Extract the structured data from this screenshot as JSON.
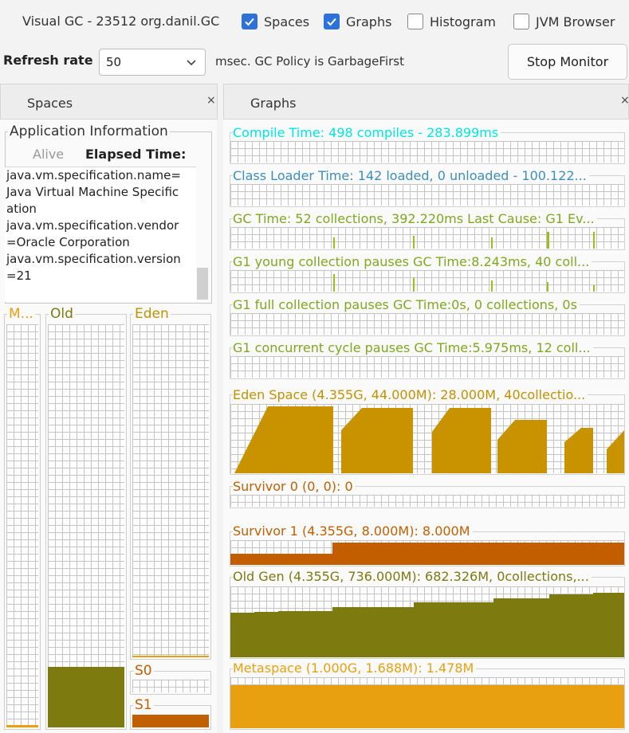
{
  "window": {
    "title": "Visual GC - 23512 org.danil.GC"
  },
  "view_toggles": [
    {
      "label": "Spaces",
      "checked": true
    },
    {
      "label": "Graphs",
      "checked": true
    },
    {
      "label": "Histogram",
      "checked": false
    },
    {
      "label": "JVM Browser",
      "checked": false
    }
  ],
  "controls": {
    "refresh_rate_label": "Refresh rate",
    "refresh_rate_value": "50",
    "policy_text": "msec. GC Policy is GarbageFirst",
    "stop_button": "Stop Monitor"
  },
  "panels": {
    "spaces": {
      "title": "Spaces",
      "close": "×"
    },
    "graphs": {
      "title": "Graphs",
      "close": "×"
    }
  },
  "app_info": {
    "title": "Application Information",
    "alive_label": "Alive",
    "elapsed_label": "Elapsed Time:",
    "properties": [
      "java.vm.specification.name=",
      "Java Virtual Machine Specific",
      "ation",
      "java.vm.specification.vendor",
      "=Oracle Corporation",
      "java.vm.specification.version",
      "=21"
    ]
  },
  "spaces": {
    "metaspace": {
      "label": "M...",
      "fill_fraction": 0.005,
      "color": "#e8a010"
    },
    "old": {
      "label": "Old",
      "fill_fraction": 0.15,
      "color": "#7d7a10"
    },
    "eden": {
      "label": "Eden",
      "fill_fraction": 0.005,
      "color": "#e8a010"
    },
    "s0": {
      "label": "S0",
      "fill_fraction": 0.0,
      "color": "#c06000"
    },
    "s1": {
      "label": "S1",
      "fill_fraction": 1.0,
      "color": "#c06000"
    }
  },
  "graphs": [
    {
      "title": "Compile Time: 498 compiles - 283.899ms",
      "color": "#00e5e5"
    },
    {
      "title": "Class Loader Time: 142 loaded, 0 unloaded - 100.122...",
      "color": "#3b8fbd"
    },
    {
      "title": "GC Time: 52 collections, 392.220ms Last Cause: G1 Ev...",
      "color": "#7ea81e"
    },
    {
      "title": "G1 young collection pauses GC Time:8.243ms, 40 coll...",
      "color": "#7ea81e"
    },
    {
      "title": "G1 full collection pauses GC Time:0s, 0 collections, 0s",
      "color": "#7ea81e"
    },
    {
      "title": "G1 concurrent cycle pauses GC Time:5.975ms, 12 coll...",
      "color": "#7ea81e"
    },
    {
      "title": "Eden Space (4.355G, 44.000M): 28.000M, 40collectio...",
      "color": "#c49000"
    },
    {
      "title": "Survivor 0 (0, 0): 0",
      "color": "#c06000"
    },
    {
      "title": "Survivor 1 (4.355G, 8.000M): 8.000M",
      "color": "#c06000"
    },
    {
      "title": "Old Gen (4.355G, 736.000M): 682.326M, 0collections,...",
      "color": "#7d7a10"
    },
    {
      "title": "Metaspace (1.000G, 1.688M): 1.478M",
      "color": "#e8a010"
    }
  ]
}
